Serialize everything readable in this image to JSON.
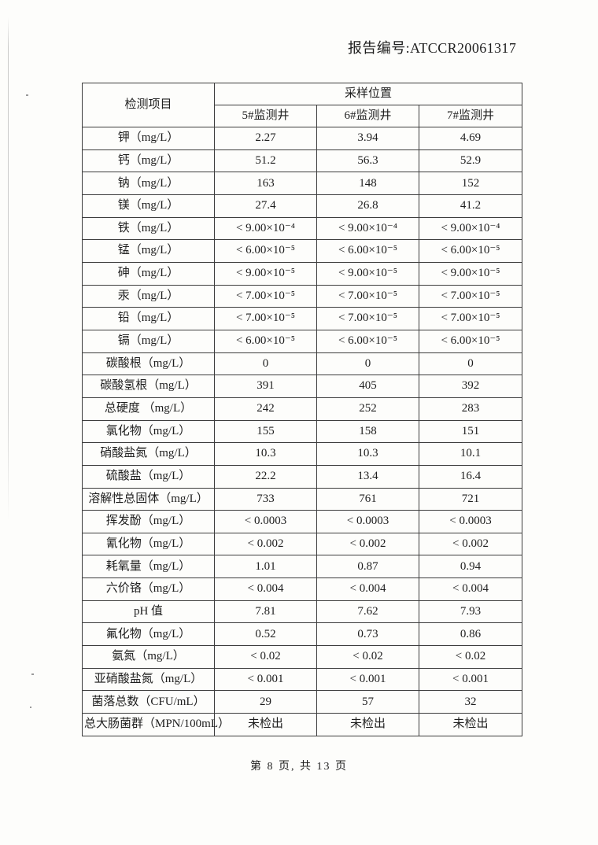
{
  "page": {
    "report_no": "报告编号:ATCCR20061317",
    "footer": "第 8 页, 共 13 页"
  },
  "colors": {
    "paper": "#fdfdfb",
    "ink": "#1e1e1e",
    "table_border": "#3d3d3d"
  },
  "table": {
    "item_header": "检测项目",
    "location_header": "采样位置",
    "columns": [
      "5#监测井",
      "6#监测井",
      "7#监测井"
    ],
    "rows": [
      {
        "item": "钾（mg/L）",
        "values": [
          "2.27",
          "3.94",
          "4.69"
        ]
      },
      {
        "item": "钙（mg/L）",
        "values": [
          "51.2",
          "56.3",
          "52.9"
        ]
      },
      {
        "item": "钠（mg/L）",
        "values": [
          "163",
          "148",
          "152"
        ]
      },
      {
        "item": "镁（mg/L）",
        "values": [
          "27.4",
          "26.8",
          "41.2"
        ]
      },
      {
        "item": "铁（mg/L）",
        "values": [
          "< 9.00×10⁻⁴",
          "< 9.00×10⁻⁴",
          "< 9.00×10⁻⁴"
        ]
      },
      {
        "item": "锰（mg/L）",
        "values": [
          "< 6.00×10⁻⁵",
          "< 6.00×10⁻⁵",
          "< 6.00×10⁻⁵"
        ]
      },
      {
        "item": "砷（mg/L）",
        "values": [
          "< 9.00×10⁻⁵",
          "< 9.00×10⁻⁵",
          "< 9.00×10⁻⁵"
        ]
      },
      {
        "item": "汞（mg/L）",
        "values": [
          "< 7.00×10⁻⁵",
          "< 7.00×10⁻⁵",
          "< 7.00×10⁻⁵"
        ]
      },
      {
        "item": "铅（mg/L）",
        "values": [
          "< 7.00×10⁻⁵",
          "< 7.00×10⁻⁵",
          "< 7.00×10⁻⁵"
        ]
      },
      {
        "item": "镉（mg/L）",
        "values": [
          "< 6.00×10⁻⁵",
          "< 6.00×10⁻⁵",
          "< 6.00×10⁻⁵"
        ]
      },
      {
        "item": "碳酸根（mg/L）",
        "values": [
          "0",
          "0",
          "0"
        ]
      },
      {
        "item": "碳酸氢根（mg/L）",
        "values": [
          "391",
          "405",
          "392"
        ]
      },
      {
        "item": "总硬度 （mg/L）",
        "values": [
          "242",
          "252",
          "283"
        ]
      },
      {
        "item": "氯化物（mg/L）",
        "values": [
          "155",
          "158",
          "151"
        ]
      },
      {
        "item": "硝酸盐氮（mg/L）",
        "values": [
          "10.3",
          "10.3",
          "10.1"
        ]
      },
      {
        "item": "硫酸盐（mg/L）",
        "values": [
          "22.2",
          "13.4",
          "16.4"
        ]
      },
      {
        "item": "溶解性总固体（mg/L）",
        "values": [
          "733",
          "761",
          "721"
        ]
      },
      {
        "item": "挥发酚（mg/L）",
        "values": [
          "< 0.0003",
          "< 0.0003",
          "< 0.0003"
        ]
      },
      {
        "item": "氰化物（mg/L）",
        "values": [
          "< 0.002",
          "< 0.002",
          "< 0.002"
        ]
      },
      {
        "item": "耗氧量（mg/L）",
        "values": [
          "1.01",
          "0.87",
          "0.94"
        ]
      },
      {
        "item": "六价铬（mg/L）",
        "values": [
          "< 0.004",
          "< 0.004",
          "< 0.004"
        ]
      },
      {
        "item": "pH 值",
        "values": [
          "7.81",
          "7.62",
          "7.93"
        ]
      },
      {
        "item": "氟化物（mg/L）",
        "values": [
          "0.52",
          "0.73",
          "0.86"
        ]
      },
      {
        "item": "氨氮（mg/L）",
        "values": [
          "< 0.02",
          "< 0.02",
          "< 0.02"
        ]
      },
      {
        "item": "亚硝酸盐氮（mg/L）",
        "values": [
          "< 0.001",
          "< 0.001",
          "< 0.001"
        ]
      },
      {
        "item": "菌落总数（CFU/mL）",
        "values": [
          "29",
          "57",
          "32"
        ]
      },
      {
        "item": "总大肠菌群（MPN/100mL）",
        "values": [
          "未检出",
          "未检出",
          "未检出"
        ]
      }
    ]
  }
}
